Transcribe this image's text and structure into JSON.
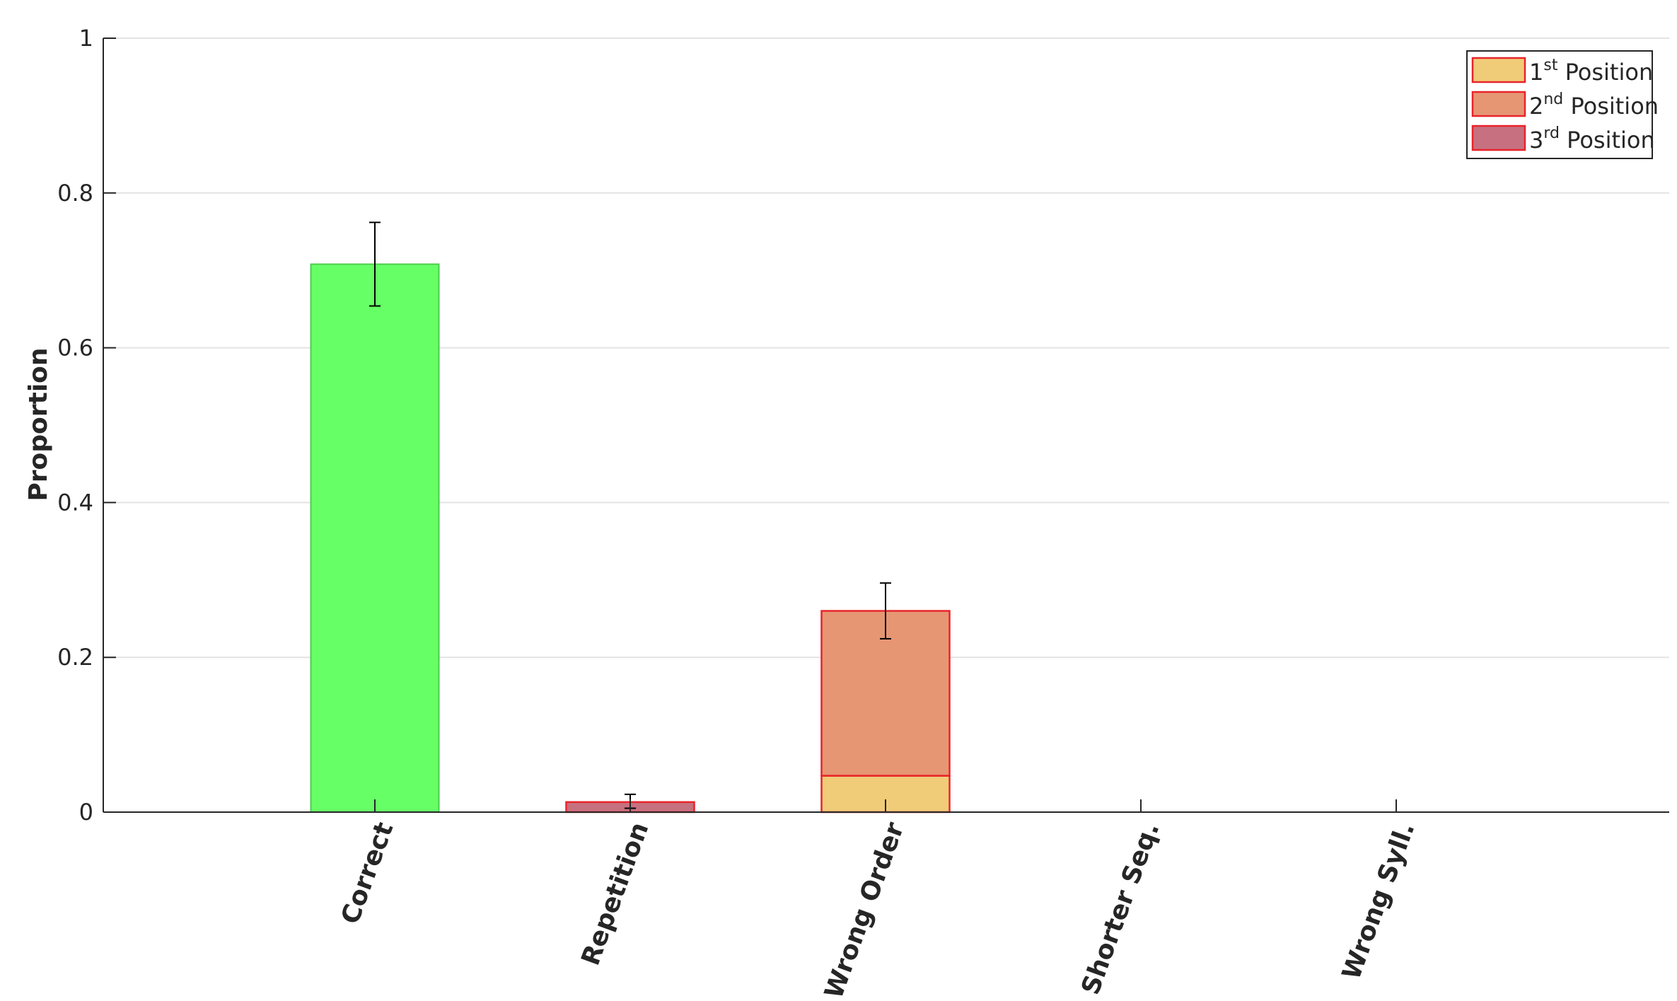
{
  "chart_data": {
    "type": "bar",
    "stacked": true,
    "categories": [
      "Correct",
      "Repetition",
      "Wrong Order",
      "Shorter Seq.",
      "Wrong Syll."
    ],
    "ylabel": "Proportion",
    "xlabel": "",
    "ylim": [
      0,
      1
    ],
    "yticks": [
      0,
      0.2,
      0.4,
      0.6,
      0.8,
      1
    ],
    "ytick_labels": [
      "0",
      "0.2",
      "0.4",
      "0.6",
      "0.8",
      "1"
    ],
    "grid": "horizontal",
    "correct": {
      "value": 0.708,
      "color": "#66ff66",
      "edge": "#4ccc4c"
    },
    "series": [
      {
        "name": "1st Position",
        "base": "1",
        "sup": "st",
        "tail": " Position",
        "color": "#f0cc78",
        "edge": "#e8242a",
        "values": [
          0,
          0,
          0.047,
          0,
          0
        ]
      },
      {
        "name": "2nd Position",
        "base": "2",
        "sup": "nd",
        "tail": " Position",
        "color": "#e69673",
        "edge": "#e8242a",
        "values": [
          0,
          0,
          0.213,
          0,
          0
        ]
      },
      {
        "name": "3rd Position",
        "base": "3",
        "sup": "rd",
        "tail": " Position",
        "color": "#c7707f",
        "edge": "#e8242a",
        "values": [
          0,
          0.013,
          0,
          0,
          0
        ]
      }
    ],
    "error_bars": [
      {
        "category": "Correct",
        "low": 0.654,
        "high": 0.762
      },
      {
        "category": "Repetition",
        "low": 0.005,
        "high": 0.023
      },
      {
        "category": "Wrong Order",
        "low": 0.224,
        "high": 0.296
      },
      {
        "category": "Shorter Seq.",
        "low": 0,
        "high": 0
      },
      {
        "category": "Wrong Syll.",
        "low": 0,
        "high": 0
      }
    ],
    "legend": {
      "placement": "top-right"
    }
  }
}
